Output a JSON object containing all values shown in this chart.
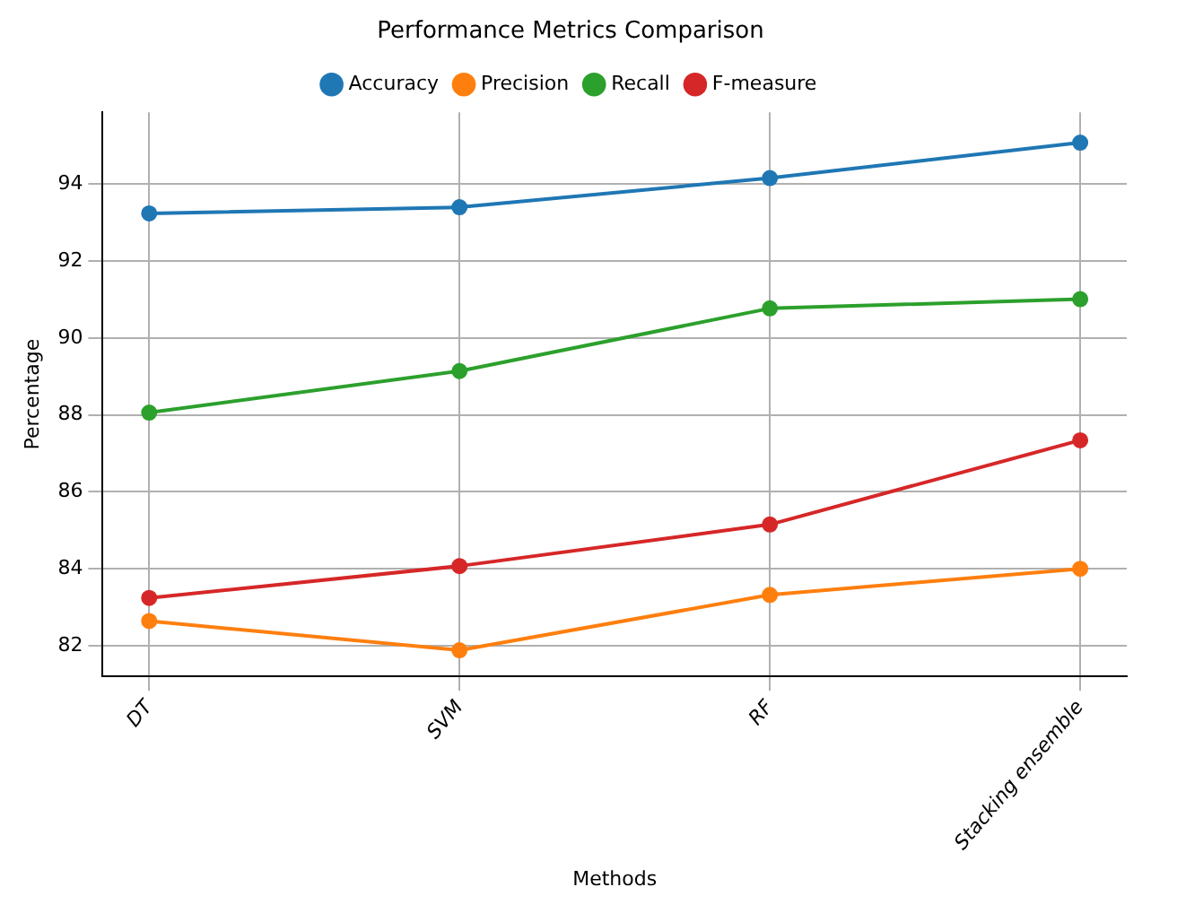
{
  "chart_data": {
    "type": "line",
    "title": "Performance Metrics Comparison",
    "xlabel": "Methods",
    "ylabel": "Percentage",
    "categories": [
      "DT",
      "SVM",
      "RF",
      "Stacking ensemble"
    ],
    "series": [
      {
        "name": "Accuracy",
        "color": "#1f77b4",
        "values": [
          93.24,
          93.4,
          94.16,
          95.08
        ]
      },
      {
        "name": "Precision",
        "color": "#ff7f0e",
        "values": [
          82.64,
          81.88,
          83.32,
          84.0
        ]
      },
      {
        "name": "Recall",
        "color": "#2ca02c",
        "values": [
          88.06,
          89.14,
          90.77,
          91.01
        ]
      },
      {
        "name": "F-measure",
        "color": "#d62728",
        "values": [
          83.24,
          84.07,
          85.15,
          87.34
        ]
      }
    ],
    "ylim": [
      81.2,
      95.87
    ],
    "yticks": [
      82,
      84,
      86,
      88,
      90,
      92,
      94
    ],
    "grid": true,
    "legend": "top",
    "marker": "circle",
    "line_style": "solid"
  }
}
